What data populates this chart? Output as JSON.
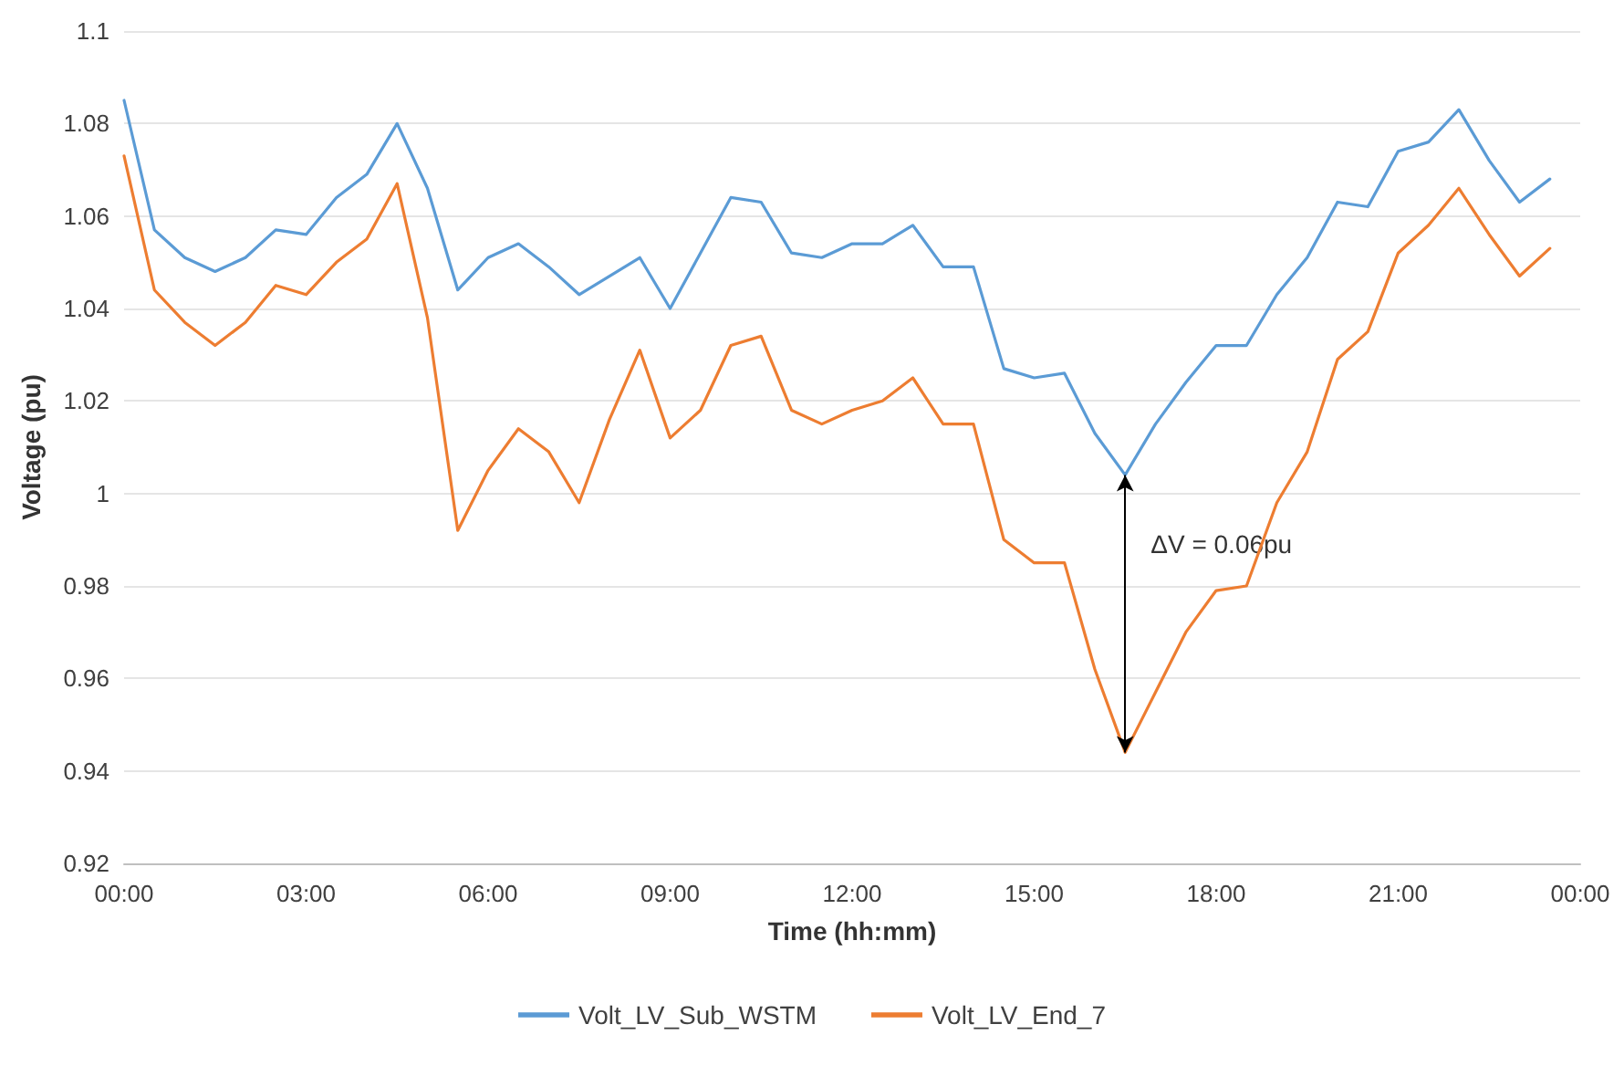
{
  "chart_data": {
    "type": "line",
    "xlabel": "Time (hh:mm)",
    "ylabel": "Voltage (pu)",
    "x": [
      0,
      0.5,
      1,
      1.5,
      2,
      2.5,
      3,
      3.5,
      4,
      4.5,
      5,
      5.5,
      6,
      6.5,
      7,
      7.5,
      8,
      8.5,
      9,
      9.5,
      10,
      10.5,
      11,
      11.5,
      12,
      12.5,
      13,
      13.5,
      14,
      14.5,
      15,
      15.5,
      16,
      16.5,
      17,
      17.5,
      18,
      18.5,
      19,
      19.5,
      20,
      20.5,
      21,
      21.5,
      22,
      22.5,
      23,
      23.5
    ],
    "series": [
      {
        "name": "Volt_LV_Sub_WSTM",
        "color": "#5b9bd5",
        "values": [
          1.085,
          1.057,
          1.051,
          1.048,
          1.051,
          1.057,
          1.056,
          1.064,
          1.069,
          1.08,
          1.066,
          1.044,
          1.051,
          1.054,
          1.049,
          1.043,
          1.047,
          1.051,
          1.04,
          1.052,
          1.064,
          1.063,
          1.052,
          1.051,
          1.054,
          1.054,
          1.058,
          1.049,
          1.049,
          1.027,
          1.025,
          1.026,
          1.013,
          1.004,
          1.015,
          1.024,
          1.032,
          1.032,
          1.043,
          1.051,
          1.063,
          1.062,
          1.074,
          1.076,
          1.083,
          1.072,
          1.063,
          1.068
        ]
      },
      {
        "name": "Volt_LV_End_7",
        "color": "#ed7d31",
        "values": [
          1.073,
          1.044,
          1.037,
          1.032,
          1.037,
          1.045,
          1.043,
          1.05,
          1.055,
          1.067,
          1.038,
          0.992,
          1.005,
          1.014,
          1.009,
          0.998,
          1.016,
          1.031,
          1.012,
          1.018,
          1.032,
          1.034,
          1.018,
          1.015,
          1.018,
          1.02,
          1.025,
          1.015,
          1.015,
          0.99,
          0.985,
          0.985,
          0.962,
          0.944,
          0.957,
          0.97,
          0.979,
          0.98,
          0.998,
          1.009,
          1.029,
          1.035,
          1.052,
          1.058,
          1.066,
          1.056,
          1.047,
          1.053
        ]
      }
    ],
    "xlim": [
      0,
      24
    ],
    "xticks": [
      {
        "value": 0,
        "label": "00:00"
      },
      {
        "value": 3,
        "label": "03:00"
      },
      {
        "value": 6,
        "label": "06:00"
      },
      {
        "value": 9,
        "label": "09:00"
      },
      {
        "value": 12,
        "label": "12:00"
      },
      {
        "value": 15,
        "label": "15:00"
      },
      {
        "value": 18,
        "label": "18:00"
      },
      {
        "value": 21,
        "label": "21:00"
      },
      {
        "value": 24,
        "label": "00:00"
      }
    ],
    "ylim": [
      0.92,
      1.1
    ],
    "yticks": [
      0.92,
      0.94,
      0.96,
      0.98,
      1,
      1.02,
      1.04,
      1.06,
      1.08,
      1.1
    ],
    "annotations": [
      "ΔV = 0.06pu"
    ],
    "grid": "y",
    "legend": "bottom",
    "marker": "none",
    "line_style": "solid"
  }
}
